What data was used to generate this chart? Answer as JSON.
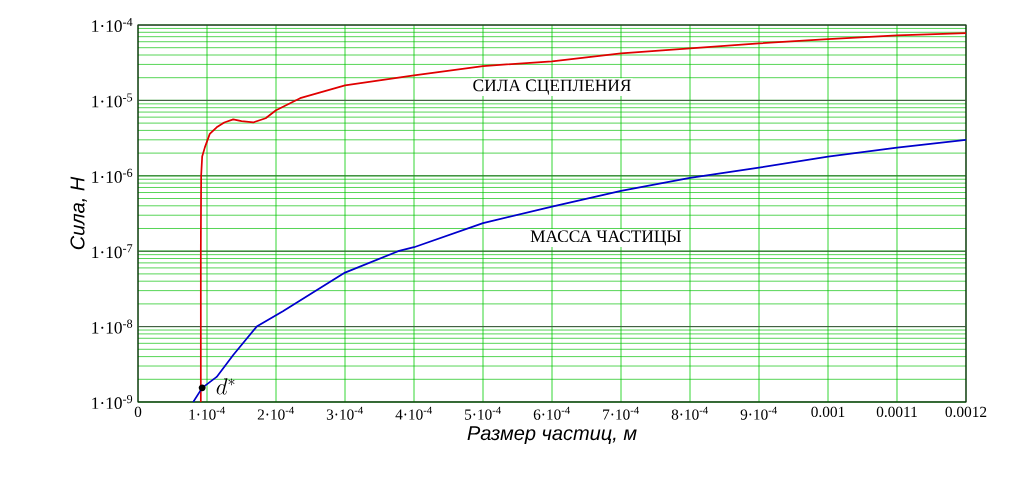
{
  "chart_data": {
    "type": "line",
    "xlabel": "Размер частиц, м",
    "ylabel": "Сила, Н",
    "log": "y",
    "grid": true,
    "legend": false,
    "marker": "none",
    "line_style": "solid",
    "xlim": [
      0,
      0.0012
    ],
    "ylim": [
      1e-09,
      0.0001
    ],
    "xticks": [
      0,
      {
        "value": 0.0001,
        "label": "1·10$^{-4}$"
      },
      {
        "value": 0.0002,
        "label": "2·10$^{-4}$"
      },
      {
        "value": 0.0003,
        "label": "3·10$^{-4}$"
      },
      {
        "value": 0.0004,
        "label": "4·10$^{-4}$"
      },
      {
        "value": 0.0005,
        "label": "5·10$^{-4}$"
      },
      {
        "value": 0.0006,
        "label": "6·10$^{-4}$"
      },
      {
        "value": 0.0007,
        "label": "7·10$^{-4}$"
      },
      {
        "value": 0.0008,
        "label": "8·10$^{-4}$"
      },
      {
        "value": 0.0009,
        "label": "9·10$^{-4}$"
      },
      0.001,
      0.0011,
      0.0012
    ],
    "yticks": [
      {
        "value": 1e-09,
        "label": "1·10$^{-9}$"
      },
      {
        "value": 1e-08,
        "label": "1·10$^{-8}$"
      },
      {
        "value": 1e-07,
        "label": "1·10$^{-7}$"
      },
      {
        "value": 1e-06,
        "label": "1·10$^{-6}$"
      },
      {
        "value": 1e-05,
        "label": "1·10$^{-5}$"
      },
      {
        "value": 0.0001,
        "label": "1·10$^{-4}$"
      }
    ],
    "series": [
      {
        "name": "СИЛА СЦЕПЛЕНИЯ",
        "color": "#e00000",
        "x": [
          9.1e-05,
          9.1e-05,
          9.15e-05,
          9.3e-05,
          9.7e-05,
          0.000104,
          0.000114,
          0.000125,
          0.000138,
          0.00015,
          0.000167,
          0.000185,
          0.0002,
          0.000235,
          0.0003,
          0.0004,
          0.0005,
          0.0006,
          0.0007,
          0.0008,
          0.0009,
          0.001,
          0.0011,
          0.0012
        ],
        "values": [
          1e-09,
          1e-07,
          1e-06,
          1.8e-06,
          2.4e-06,
          3.6e-06,
          4.4e-06,
          5.1e-06,
          5.6e-06,
          5.3e-06,
          5.1e-06,
          5.8e-06,
          7.4e-06,
          1.07e-05,
          1.58e-05,
          2.15e-05,
          2.85e-05,
          3.3e-05,
          4.2e-05,
          4.9e-05,
          5.7e-05,
          6.5e-05,
          7.3e-05,
          7.8e-05
        ]
      },
      {
        "name": "МАССА ЧАСТИЦЫ",
        "color": "#0000cc",
        "x": [
          8e-05,
          9.3e-05,
          0.000114,
          0.000138,
          0.000172,
          0.00021,
          0.0003,
          0.000377,
          0.0004,
          0.0005,
          0.0006,
          0.0007,
          0.0008,
          0.0009,
          0.001,
          0.0011,
          0.0012
        ],
        "values": [
          1e-09,
          1.54e-09,
          2.15e-09,
          4.2e-09,
          1e-08,
          1.6e-08,
          5.2e-08,
          1e-07,
          1.13e-07,
          2.36e-07,
          3.9e-07,
          6.3e-07,
          9.4e-07,
          1.28e-06,
          1.8e-06,
          2.36e-06,
          3e-06
        ]
      }
    ],
    "annotations": [
      {
        "text": "d^*",
        "x": 9.3e-05,
        "y": 1.54e-09
      }
    ]
  }
}
